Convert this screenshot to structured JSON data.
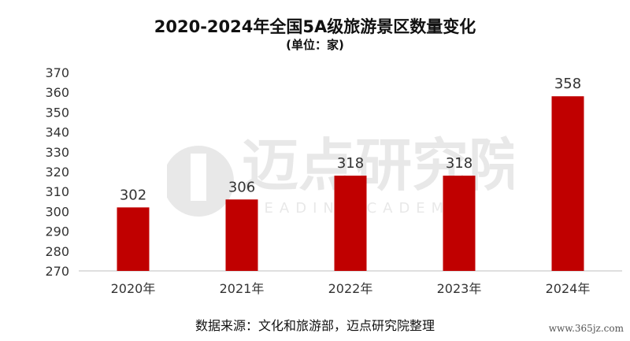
{
  "title": "2020-2024年全国5A级旅游景区数量变化",
  "subtitle": "(单位：家)",
  "source": "数据来源：文化和旅游部，迈点研究院整理",
  "credit": "www.365jz.com",
  "watermark": {
    "text": "迈点研究院",
    "subtext": "MEADIN ACADEMY"
  },
  "chart_data": {
    "type": "bar",
    "categories": [
      "2020年",
      "2021年",
      "2022年",
      "2023年",
      "2024年"
    ],
    "values": [
      302,
      306,
      318,
      318,
      358
    ],
    "ylim": [
      270,
      370
    ],
    "yticks": [
      270,
      280,
      290,
      300,
      310,
      320,
      330,
      340,
      350,
      360,
      370
    ],
    "grid": false,
    "bar_color": "#c00000",
    "title": "2020-2024年全国5A级旅游景区数量变化",
    "xlabel": "",
    "ylabel": ""
  }
}
